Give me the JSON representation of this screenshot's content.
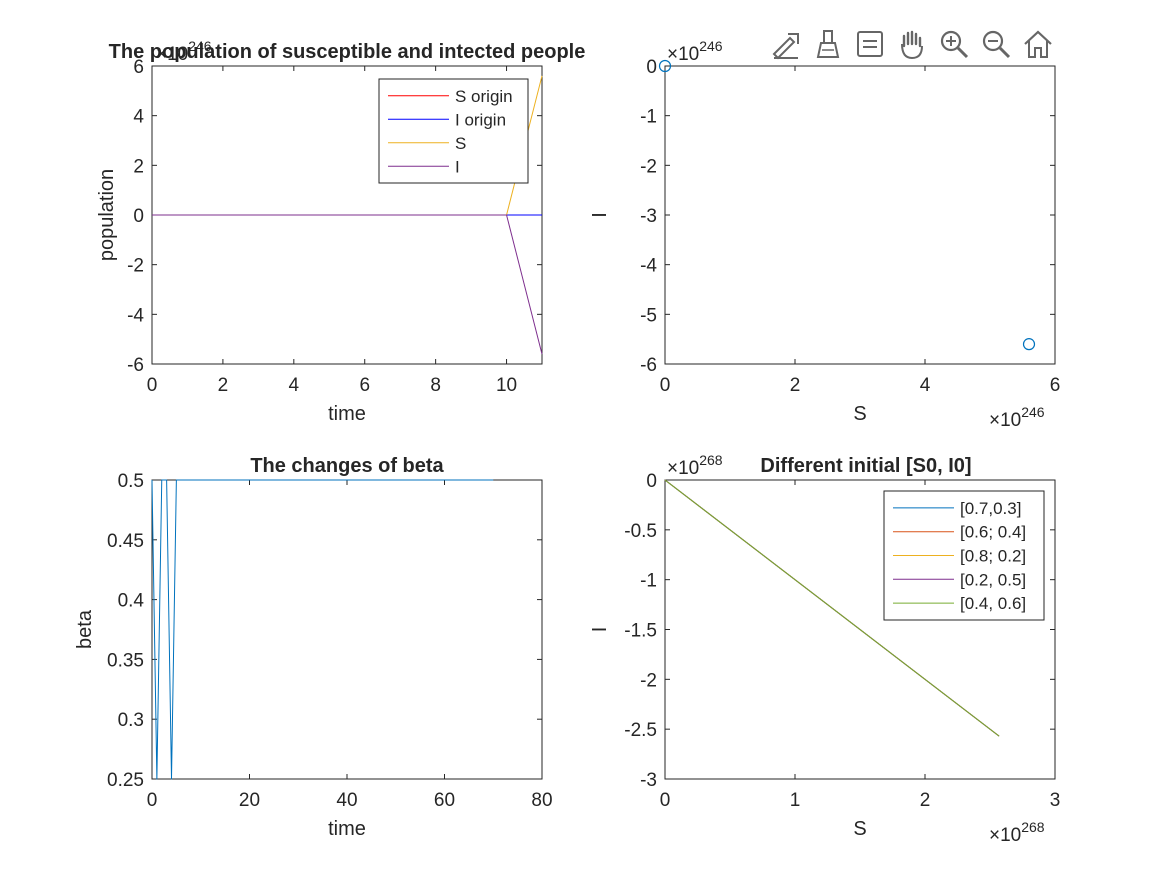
{
  "toolbar": {
    "buttons": [
      {
        "name": "export-icon"
      },
      {
        "name": "brush-icon"
      },
      {
        "name": "datatip-icon"
      },
      {
        "name": "pan-hand-icon"
      },
      {
        "name": "zoom-in-icon"
      },
      {
        "name": "zoom-out-icon"
      },
      {
        "name": "home-icon"
      }
    ]
  },
  "chart_data": [
    {
      "id": "p1",
      "type": "line",
      "title": "The population of susceptible and intected people",
      "xlabel": "time",
      "ylabel": "population",
      "xlim": [
        0,
        11
      ],
      "ylim": [
        -6,
        6
      ],
      "xticks": [
        0,
        2,
        4,
        6,
        8,
        10
      ],
      "yticks": [
        -6,
        -4,
        -2,
        0,
        2,
        4,
        6
      ],
      "exponent_label": "×10^246",
      "legend": {
        "placement": "top-right"
      },
      "series": [
        {
          "name": "S origin",
          "color": "#ff0000",
          "x": [
            0,
            11
          ],
          "y": [
            0,
            0
          ]
        },
        {
          "name": "I origin",
          "color": "#0000ff",
          "x": [
            0,
            11
          ],
          "y": [
            0,
            0
          ]
        },
        {
          "name": "S",
          "color": "#edb120",
          "x": [
            0,
            1,
            2,
            3,
            4,
            5,
            6,
            7,
            8,
            9,
            10,
            11
          ],
          "y": [
            0,
            0,
            0,
            0,
            0,
            0,
            0,
            0,
            0,
            0,
            0,
            5.6
          ]
        },
        {
          "name": "I",
          "color": "#7e2f8e",
          "x": [
            0,
            1,
            2,
            3,
            4,
            5,
            6,
            7,
            8,
            9,
            10,
            11
          ],
          "y": [
            0,
            0,
            0,
            0,
            0,
            0,
            0,
            0,
            0,
            0,
            0,
            -5.6
          ]
        }
      ]
    },
    {
      "id": "p2",
      "type": "scatter",
      "title": "",
      "xlabel": "S",
      "ylabel": "I",
      "xlim": [
        0,
        6
      ],
      "ylim": [
        -6,
        0
      ],
      "xticks": [
        0,
        2,
        4,
        6
      ],
      "yticks": [
        -6,
        -5,
        -4,
        -3,
        -2,
        -1,
        0
      ],
      "x_exponent_label": "×10^246",
      "y_exponent_label": "×10^246",
      "marker": "circle",
      "series": [
        {
          "color": "#0072bd",
          "x": [
            0,
            5.6
          ],
          "y": [
            0,
            -5.6
          ]
        }
      ]
    },
    {
      "id": "p3",
      "type": "line",
      "title": "The changes of beta",
      "xlabel": "time",
      "ylabel": "beta",
      "xlim": [
        0,
        80
      ],
      "ylim": [
        0.25,
        0.5
      ],
      "xticks": [
        0,
        20,
        40,
        60,
        80
      ],
      "yticks": [
        0.25,
        0.3,
        0.35,
        0.4,
        0.45,
        0.5
      ],
      "series": [
        {
          "color": "#0072bd",
          "x": [
            0,
            1,
            2,
            3,
            4,
            5,
            6,
            70
          ],
          "y": [
            0.5,
            0.25,
            0.5,
            0.5,
            0.25,
            0.5,
            0.5,
            0.5
          ]
        }
      ]
    },
    {
      "id": "p4",
      "type": "line",
      "title": "Different initial [S0, I0]",
      "xlabel": "S",
      "ylabel": "I",
      "xlim": [
        0,
        3
      ],
      "ylim": [
        -3,
        0
      ],
      "xticks": [
        0,
        1,
        2,
        3
      ],
      "yticks": [
        -3,
        -2.5,
        -2,
        -1.5,
        -1,
        -0.5,
        0
      ],
      "x_exponent_label": "×10^268",
      "y_exponent_label": "×10^268",
      "legend": {
        "placement": "top-right"
      },
      "series": [
        {
          "name": "[0.7,0.3]",
          "color": "#0072bd",
          "x": [
            0,
            2.57
          ],
          "y": [
            0,
            -2.57
          ]
        },
        {
          "name": "[0.6; 0.4]",
          "color": "#d95319",
          "x": [
            0,
            2.57
          ],
          "y": [
            0,
            -2.57
          ]
        },
        {
          "name": "[0.8; 0.2]",
          "color": "#edb120",
          "x": [
            0,
            2.57
          ],
          "y": [
            0,
            -2.57
          ]
        },
        {
          "name": "[0.2, 0.5]",
          "color": "#7e2f8e",
          "x": [
            0,
            2.57
          ],
          "y": [
            0,
            -2.57
          ]
        },
        {
          "name": "[0.4, 0.6]",
          "color": "#77ac30",
          "x": [
            0,
            2.57
          ],
          "y": [
            0,
            -2.57
          ]
        }
      ]
    }
  ]
}
